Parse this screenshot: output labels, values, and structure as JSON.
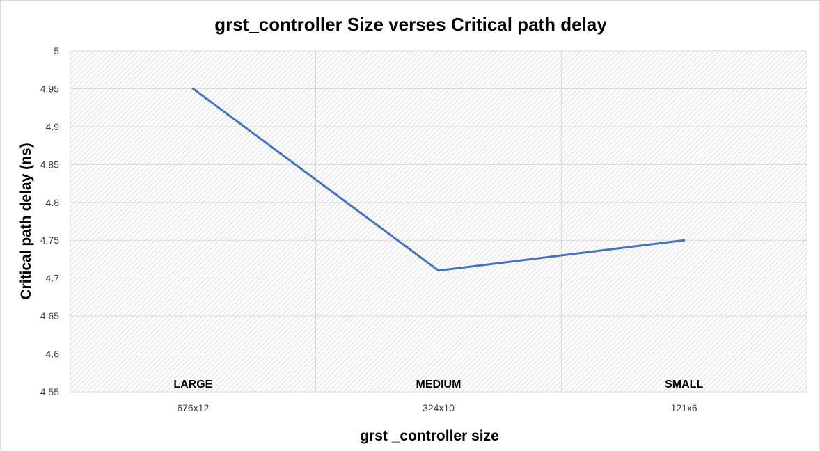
{
  "chart_data": {
    "type": "line",
    "title": "grst_controller Size verses Critical path delay",
    "xlabel": "grst _controller size",
    "ylabel": "Critical path delay (ns)",
    "categories": [
      "676x12",
      "324x10",
      "121x6"
    ],
    "category_names": [
      "LARGE",
      "MEDIUM",
      "SMALL"
    ],
    "series": [
      {
        "values": [
          4.95,
          4.71,
          4.75
        ]
      }
    ],
    "ylim": [
      4.55,
      5
    ],
    "yticks": [
      "4.55",
      "4.6",
      "4.65",
      "4.7",
      "4.75",
      "4.8",
      "4.85",
      "4.9",
      "4.95",
      "5"
    ],
    "grid": true,
    "colors": {
      "line": "#4472C4",
      "grid": "#d9d9d9",
      "plot_hatch": "#dcdcdc"
    }
  }
}
